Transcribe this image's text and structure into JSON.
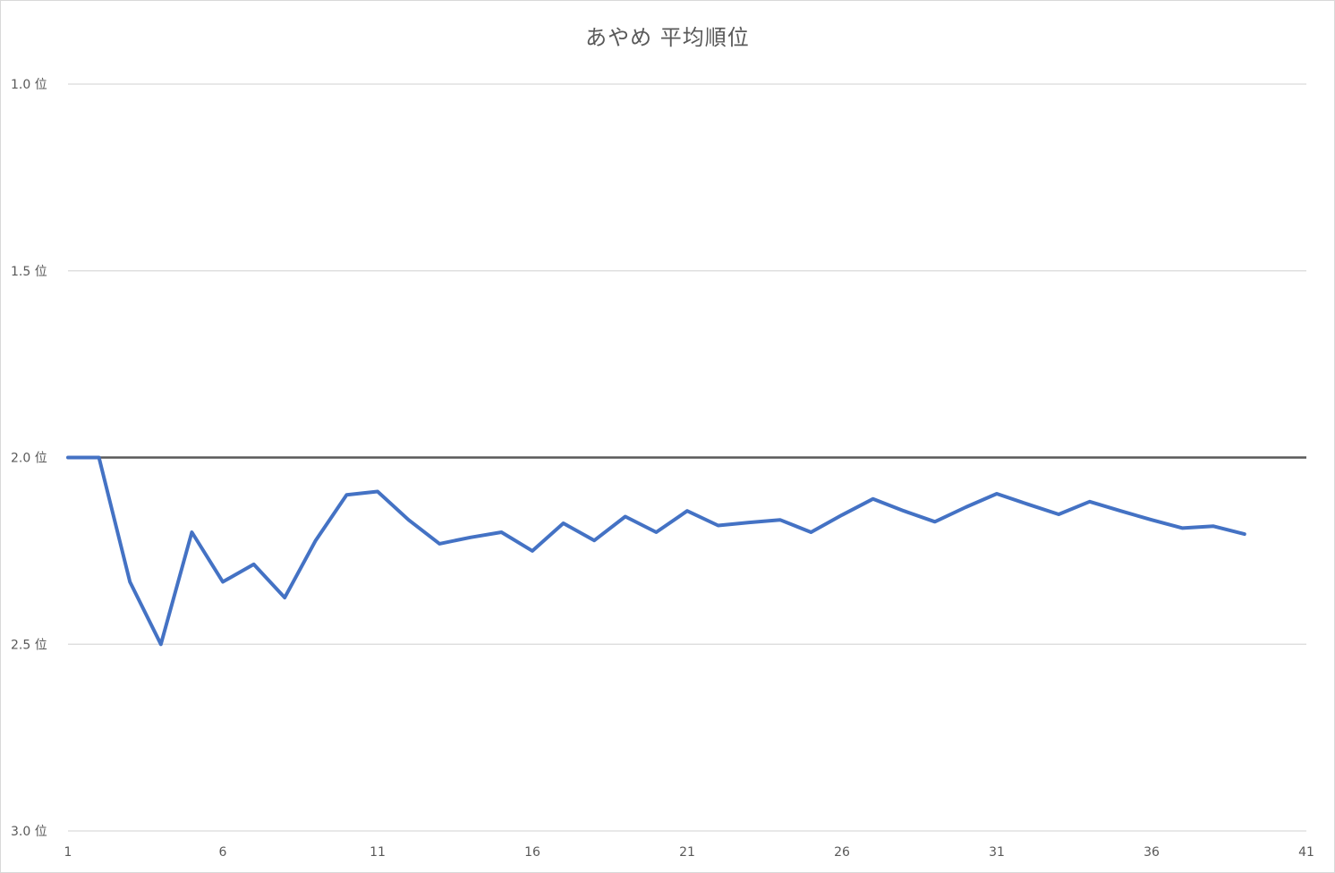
{
  "chart_data": {
    "type": "line",
    "title": "あやめ 平均順位",
    "xlabel": "",
    "ylabel": "",
    "xlim": [
      1,
      41
    ],
    "ylim": [
      1.0,
      3.0
    ],
    "y_reversed": true,
    "grid": true,
    "legend": "none",
    "x_ticks": [
      1,
      6,
      11,
      16,
      21,
      26,
      31,
      36,
      41
    ],
    "x_tick_labels": [
      "1",
      "6",
      "11",
      "16",
      "21",
      "26",
      "31",
      "36",
      "41"
    ],
    "y_ticks": [
      1.0,
      1.5,
      2.0,
      2.5,
      3.0
    ],
    "y_tick_labels": [
      "1.0 位",
      "1.5 位",
      "2.0 位",
      "2.5 位",
      "3.0 位"
    ],
    "reference_line": {
      "y": 2.0,
      "color": "#595959"
    },
    "series": [
      {
        "color": "#4472c4",
        "x": [
          1,
          2,
          3,
          4,
          5,
          6,
          7,
          8,
          9,
          10,
          11,
          12,
          13,
          14,
          15,
          16,
          17,
          18,
          19,
          20,
          21,
          22,
          23,
          24,
          25,
          26,
          27,
          28,
          29,
          30,
          31,
          32,
          33,
          34,
          35,
          36,
          37,
          38,
          39
        ],
        "values": [
          2.0,
          2.0,
          2.333,
          2.5,
          2.2,
          2.333,
          2.286,
          2.375,
          2.222,
          2.1,
          2.091,
          2.167,
          2.231,
          2.214,
          2.2,
          2.25,
          2.176,
          2.222,
          2.158,
          2.2,
          2.143,
          2.182,
          2.174,
          2.167,
          2.2,
          2.154,
          2.111,
          2.143,
          2.172,
          2.133,
          2.097,
          2.125,
          2.152,
          2.118,
          2.143,
          2.167,
          2.189,
          2.184,
          2.205
        ]
      }
    ]
  }
}
